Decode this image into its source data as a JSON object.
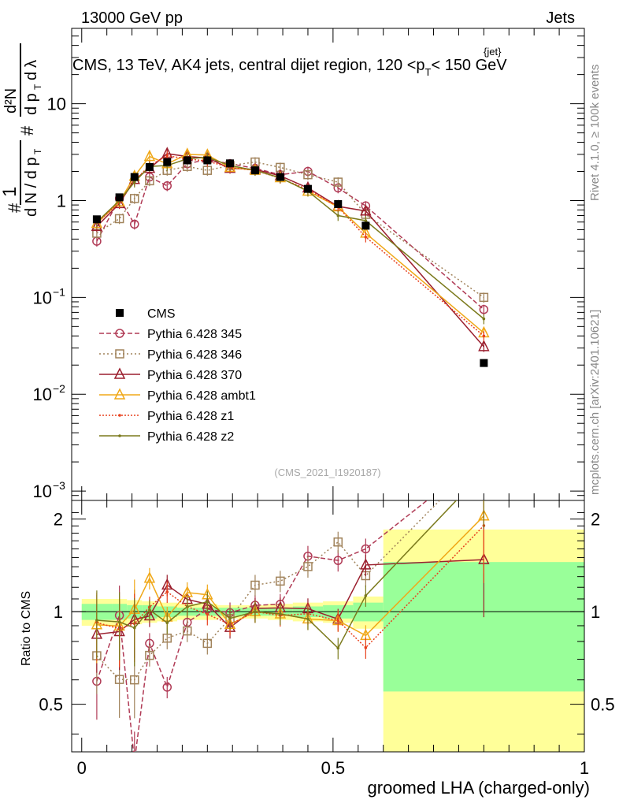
{
  "header": {
    "left": "13000 GeV pp",
    "right": "Jets"
  },
  "side": {
    "rivet": "Rivet 4.1.0, ≥ 100k events",
    "mcplots": "mcplots.cern.ch [arXiv:2401.10621]"
  },
  "chart_data": [
    {
      "type": "scatter",
      "panel": "main",
      "title": "CMS, 13 TeV, AK4 jets, central dijet region, 120 <p_T^{jet}< 150 GeV",
      "title_main": "CMS, 13 TeV, AK4 jets, central dijet region, 120 <p",
      "title_sup": "{jet}",
      "title_sub": "T",
      "title_tail": "< 150 GeV",
      "ylabel": "1/(dN/dp_T) d²N/(dp_T dλ)",
      "yscale": "log",
      "ylim": [
        0.0008,
        60
      ],
      "xlim": [
        -0.02,
        1
      ],
      "analysis_id": "(CMS_2021_I1920187)",
      "x": [
        0.03,
        0.075,
        0.105,
        0.135,
        0.17,
        0.21,
        0.25,
        0.295,
        0.345,
        0.395,
        0.45,
        0.51,
        0.565,
        0.8
      ],
      "series": [
        {
          "name": "CMS",
          "color": "#000000",
          "marker": "filled-square",
          "dash": "none",
          "line": false,
          "values": [
            0.64,
            1.08,
            1.75,
            2.22,
            2.5,
            2.6,
            2.6,
            2.42,
            2.05,
            1.75,
            1.32,
            0.92,
            0.55,
            0.021
          ]
        },
        {
          "name": "Pythia 6.428 345",
          "color": "#b03a55",
          "marker": "open-circle",
          "dash": "6,3",
          "line": true,
          "values": [
            0.38,
            1.05,
            0.57,
            1.75,
            1.42,
            2.4,
            2.65,
            2.4,
            2.15,
            1.85,
            2.0,
            1.35,
            0.88,
            0.075
          ]
        },
        {
          "name": "Pythia 6.428 346",
          "color": "#a0825a",
          "marker": "open-square",
          "dash": "2,3",
          "line": true,
          "values": [
            0.46,
            0.65,
            1.05,
            1.6,
            2.05,
            2.25,
            2.05,
            2.3,
            2.5,
            2.2,
            1.85,
            1.55,
            0.72,
            0.1
          ]
        },
        {
          "name": "Pythia 6.428 370",
          "color": "#9b1f2e",
          "marker": "open-triangle",
          "dash": "none",
          "line": true,
          "values": [
            0.54,
            0.93,
            1.65,
            2.15,
            3.05,
            2.85,
            2.75,
            2.15,
            2.1,
            1.8,
            1.35,
            0.87,
            0.78,
            0.031
          ]
        },
        {
          "name": "Pythia 6.428 ambt1",
          "color": "#f0a818",
          "marker": "open-triangle",
          "dash": "none",
          "line": true,
          "values": [
            0.58,
            0.97,
            1.78,
            2.85,
            2.4,
            3.0,
            2.95,
            2.2,
            2.05,
            1.72,
            1.25,
            0.86,
            0.46,
            0.043
          ]
        },
        {
          "name": "Pythia 6.428 z1",
          "color": "#e8411e",
          "marker": "small-dot",
          "dash": "2,2",
          "line": true,
          "values": [
            0.59,
            0.95,
            1.6,
            2.3,
            2.9,
            2.7,
            2.55,
            2.2,
            2.05,
            1.7,
            1.3,
            0.86,
            0.42,
            0.04
          ]
        },
        {
          "name": "Pythia 6.428 z2",
          "color": "#7b7a1c",
          "marker": "small-dot",
          "dash": "none",
          "line": true,
          "values": [
            0.6,
            1.0,
            1.55,
            2.25,
            2.3,
            2.7,
            2.8,
            2.3,
            2.05,
            1.72,
            1.25,
            0.7,
            0.62,
            0.06
          ]
        }
      ]
    },
    {
      "type": "scatter",
      "panel": "ratio",
      "ylabel": "Ratio to CMS",
      "xlabel": "groomed LHA (charged-only)",
      "xlim": [
        -0.02,
        1
      ],
      "ylim": [
        0.35,
        2.3
      ],
      "yticks": [
        0.5,
        1,
        2
      ],
      "xticks": [
        0,
        0.5,
        1
      ],
      "xtick_labels": [
        "0",
        "0.5",
        "1"
      ],
      "ytick_labels": [
        "0.5",
        "1",
        "2"
      ],
      "bands": {
        "bins": [
          0.0,
          0.06,
          0.09,
          0.12,
          0.15,
          0.19,
          0.23,
          0.27,
          0.32,
          0.37,
          0.42,
          0.48,
          0.54,
          0.6,
          1.0
        ],
        "stat_syst": [
          0.1,
          0.1,
          0.09,
          0.08,
          0.07,
          0.06,
          0.06,
          0.05,
          0.05,
          0.06,
          0.07,
          0.08,
          0.12,
          0.85
        ],
        "stat": [
          0.06,
          0.06,
          0.05,
          0.05,
          0.04,
          0.03,
          0.03,
          0.03,
          0.03,
          0.03,
          0.04,
          0.05,
          0.07,
          0.45
        ],
        "outer_color": "#ffff99",
        "inner_color": "#99ff99"
      }
    }
  ]
}
